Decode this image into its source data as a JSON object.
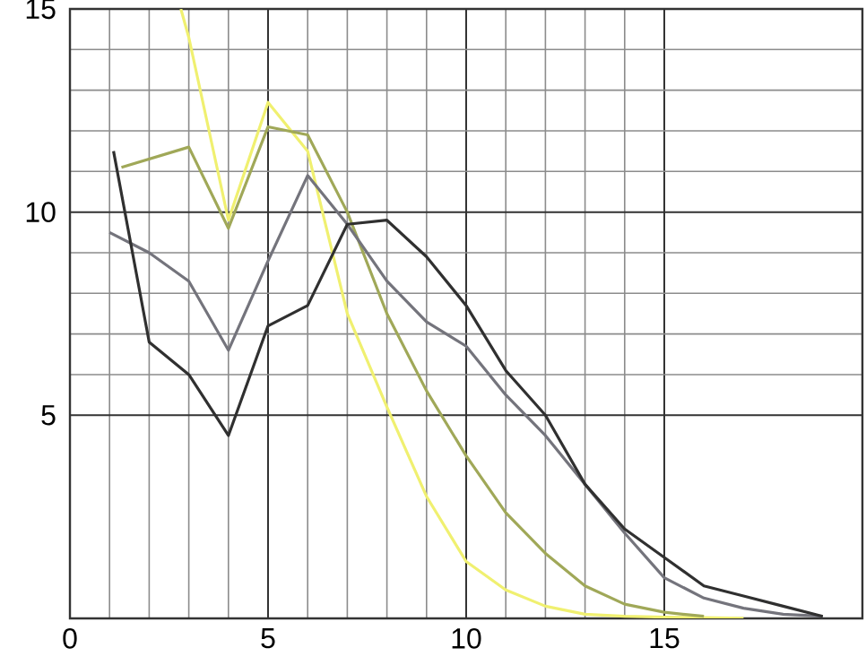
{
  "chart_data": {
    "type": "line",
    "xlim": [
      0,
      20
    ],
    "ylim": [
      0,
      15
    ],
    "xticks": [
      0,
      5,
      10,
      15
    ],
    "yticks": [
      5,
      10,
      15
    ],
    "grid": true,
    "marker": "none",
    "line_style": "solid",
    "series": [
      {
        "color": "#f0f070",
        "x": [
          2.8,
          3,
          4,
          5,
          6,
          7,
          8,
          9,
          10,
          11,
          12,
          13,
          14,
          15,
          16,
          17
        ],
        "values": [
          15,
          14.3,
          9.8,
          12.7,
          11.5,
          7.5,
          5.2,
          3.0,
          1.4,
          0.7,
          0.3,
          0.1,
          0.05,
          0.03,
          0.02,
          0
        ]
      },
      {
        "color": "#a0a858",
        "x": [
          1.3,
          3,
          4,
          5,
          6,
          7,
          8,
          9,
          10,
          11,
          12,
          13,
          14,
          15,
          16
        ],
        "values": [
          11.1,
          11.6,
          9.6,
          12.1,
          11.9,
          10.0,
          7.5,
          5.6,
          4.0,
          2.6,
          1.6,
          0.8,
          0.35,
          0.15,
          0.05
        ]
      },
      {
        "color": "#74747c",
        "x": [
          1,
          2,
          3,
          4,
          5,
          6,
          7,
          8,
          9,
          10,
          11,
          12,
          13,
          14,
          15,
          16,
          17,
          18,
          19
        ],
        "values": [
          9.5,
          9.0,
          8.3,
          6.6,
          8.8,
          10.9,
          9.7,
          8.3,
          7.3,
          6.7,
          5.5,
          4.5,
          3.3,
          2.1,
          1.0,
          0.5,
          0.25,
          0.1,
          0.05
        ]
      },
      {
        "color": "#303030",
        "x": [
          1.1,
          2,
          3,
          4,
          5,
          6,
          7,
          8,
          9,
          10,
          11,
          12,
          13,
          14,
          15,
          16,
          17,
          18,
          19
        ],
        "values": [
          11.5,
          6.8,
          6.0,
          4.5,
          7.2,
          7.7,
          9.7,
          9.8,
          8.9,
          7.7,
          6.1,
          5.0,
          3.3,
          2.2,
          1.5,
          0.8,
          0.55,
          0.3,
          0.05
        ]
      }
    ]
  }
}
